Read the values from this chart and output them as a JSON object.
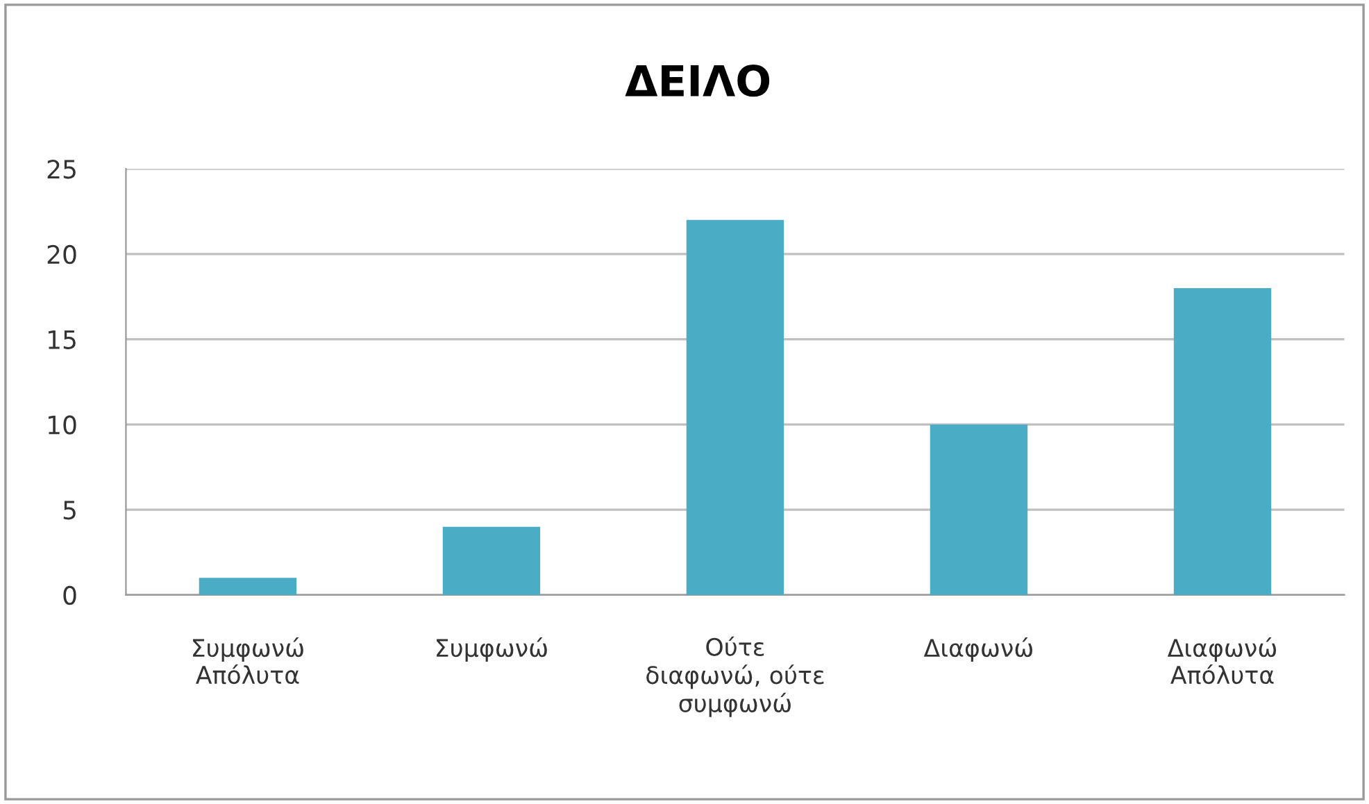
{
  "chart_data": {
    "type": "bar",
    "title": "ΔΕΙΛΟ",
    "categories": [
      "Συμφωνώ\nΑπόλυτα",
      "Συμφωνώ",
      "Ούτε\nδιαφωνώ, ούτε\nσυμφωνώ",
      "Διαφωνώ",
      "Διαφωνώ\nΑπόλυτα"
    ],
    "values": [
      1,
      4,
      22,
      10,
      18
    ],
    "color": "#4bacc6",
    "ylim": [
      0,
      25
    ],
    "yticks": [
      0,
      5,
      10,
      15,
      20,
      25
    ],
    "grid": "y"
  }
}
